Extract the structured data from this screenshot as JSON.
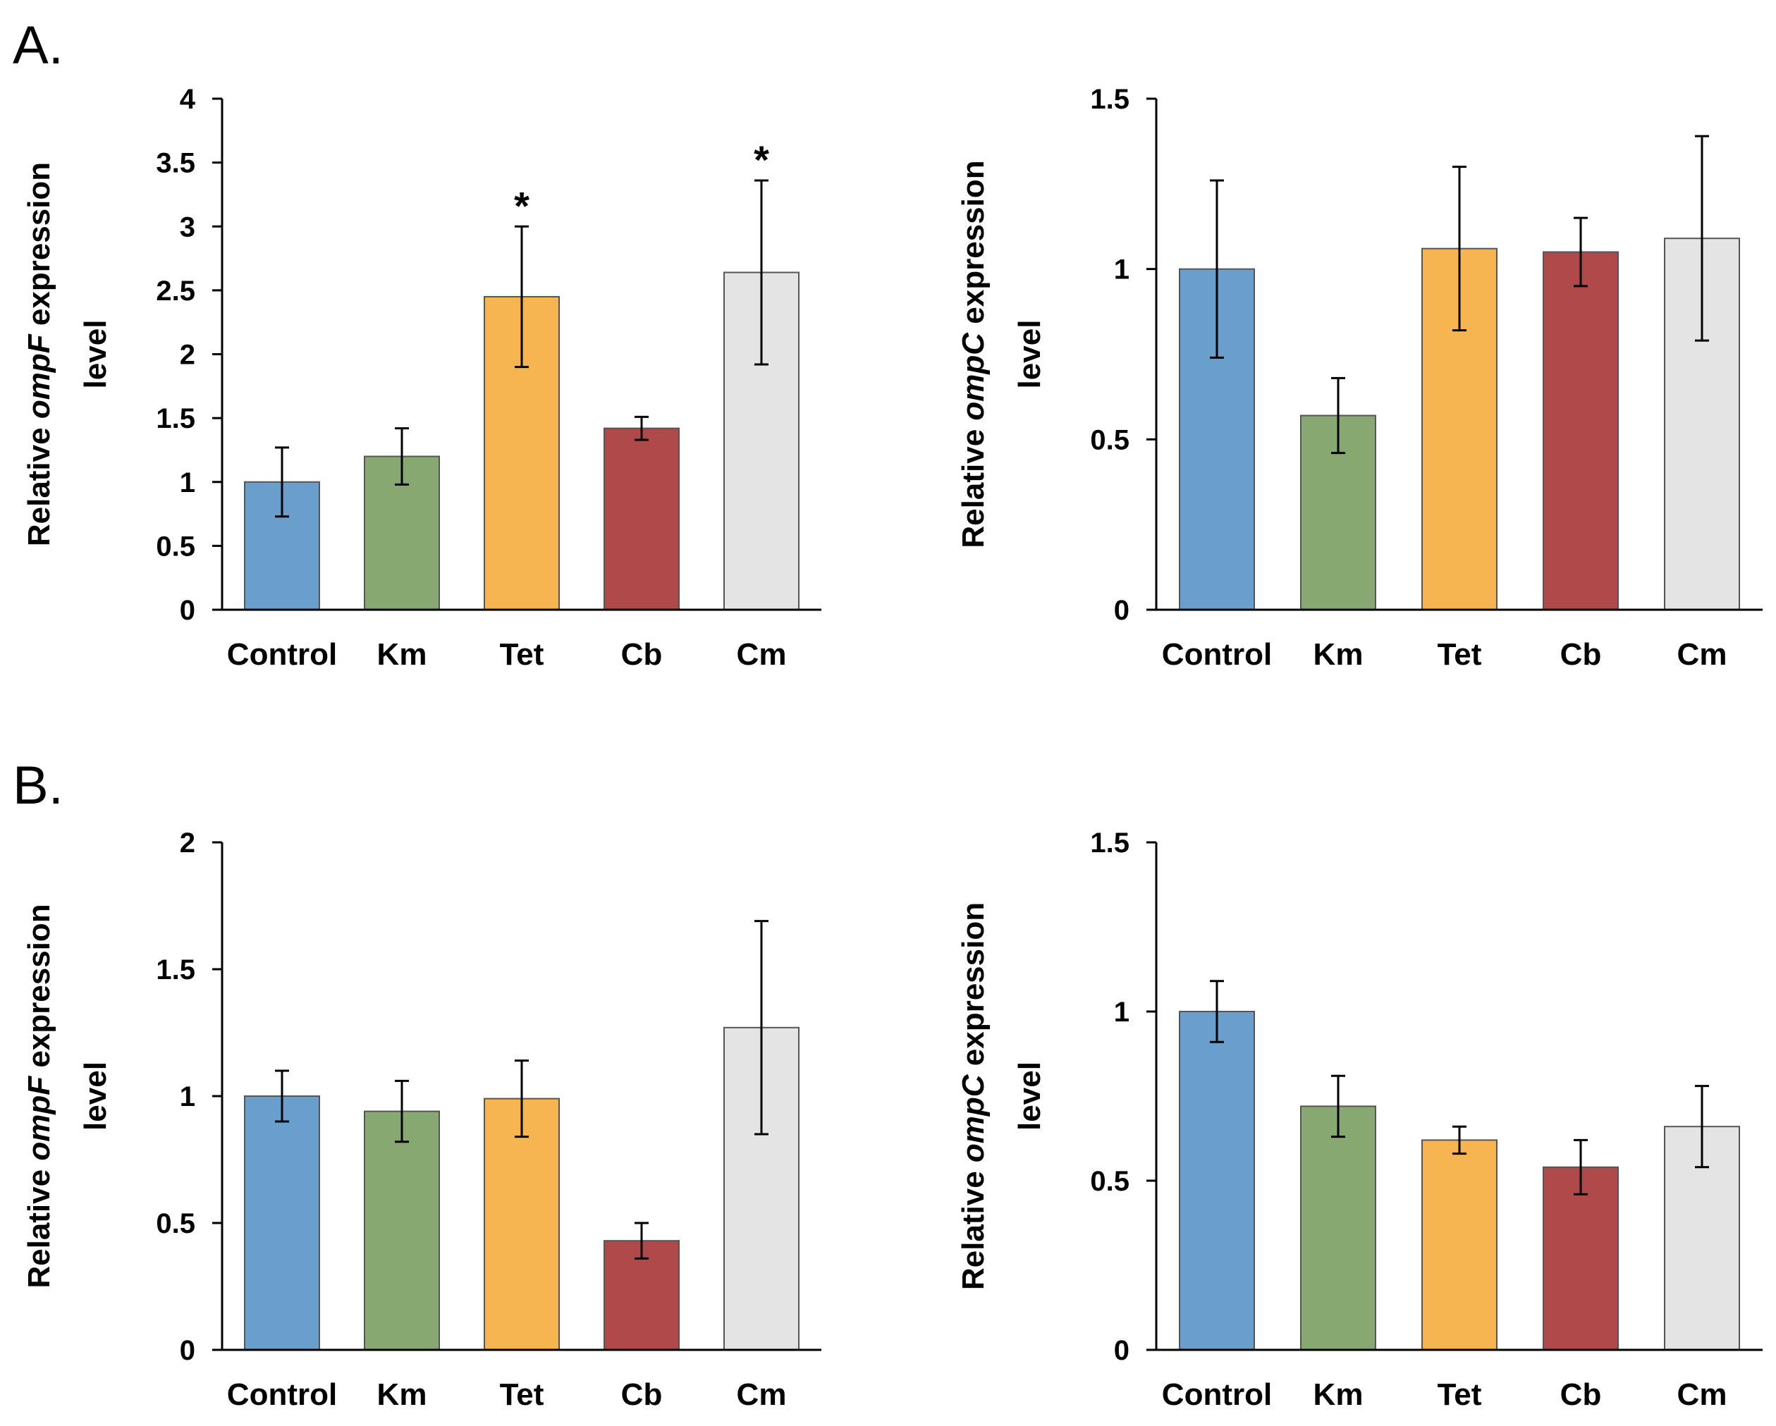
{
  "colors": {
    "Control": "#6a9ecc",
    "Km": "#88a872",
    "Tet": "#f7b552",
    "Cb": "#b04a4a",
    "Cm": "#e4e4e4"
  },
  "panels": [
    {
      "label": "A."
    },
    {
      "label": "B."
    }
  ],
  "chart_data": [
    {
      "type": "bar",
      "panel": "A.",
      "title": "",
      "ylabel_prefix": "Relative ",
      "ylabel_gene": "ompF",
      "ylabel_suffix": " expression",
      "ylabel_line2": "level",
      "categories": [
        "Control",
        "Km",
        "Tet",
        "Cb",
        "Cm"
      ],
      "values": [
        1.0,
        1.2,
        2.45,
        1.42,
        2.64
      ],
      "errors": [
        0.27,
        0.22,
        0.55,
        0.09,
        0.72
      ],
      "significance": [
        "",
        "",
        "*",
        "",
        "*"
      ],
      "ylim": [
        0,
        4
      ],
      "yticks": [
        "0",
        "0.5",
        "1",
        "1.5",
        "2",
        "2.5",
        "3",
        "3.5",
        "4"
      ]
    },
    {
      "type": "bar",
      "panel": "A.",
      "title": "",
      "ylabel_prefix": "Relative ",
      "ylabel_gene": "ompC",
      "ylabel_suffix": " expression",
      "ylabel_line2": "level",
      "categories": [
        "Control",
        "Km",
        "Tet",
        "Cb",
        "Cm"
      ],
      "values": [
        1.0,
        0.57,
        1.06,
        1.05,
        1.09
      ],
      "errors": [
        0.26,
        0.11,
        0.24,
        0.1,
        0.3
      ],
      "significance": [
        "",
        "",
        "",
        "",
        ""
      ],
      "ylim": [
        0,
        1.5
      ],
      "yticks": [
        "0",
        "0.5",
        "1",
        "1.5"
      ]
    },
    {
      "type": "bar",
      "panel": "B.",
      "title": "",
      "ylabel_prefix": "Relative ",
      "ylabel_gene": "ompF",
      "ylabel_suffix": " expression",
      "ylabel_line2": "level",
      "categories": [
        "Control",
        "Km",
        "Tet",
        "Cb",
        "Cm"
      ],
      "values": [
        1.0,
        0.94,
        0.99,
        0.43,
        1.27
      ],
      "errors": [
        0.1,
        0.12,
        0.15,
        0.07,
        0.42
      ],
      "significance": [
        "",
        "",
        "",
        "",
        ""
      ],
      "ylim": [
        0,
        2
      ],
      "yticks": [
        "0",
        "0.5",
        "1",
        "1.5",
        "2"
      ]
    },
    {
      "type": "bar",
      "panel": "B.",
      "title": "",
      "ylabel_prefix": "Relative ",
      "ylabel_gene": "ompC",
      "ylabel_suffix": " expression",
      "ylabel_line2": "level",
      "categories": [
        "Control",
        "Km",
        "Tet",
        "Cb",
        "Cm"
      ],
      "values": [
        1.0,
        0.72,
        0.62,
        0.54,
        0.66
      ],
      "errors": [
        0.09,
        0.09,
        0.04,
        0.08,
        0.12
      ],
      "significance": [
        "",
        "",
        "",
        "",
        ""
      ],
      "ylim": [
        0,
        1.5
      ],
      "yticks": [
        "0",
        "0.5",
        "1",
        "1.5"
      ]
    }
  ]
}
